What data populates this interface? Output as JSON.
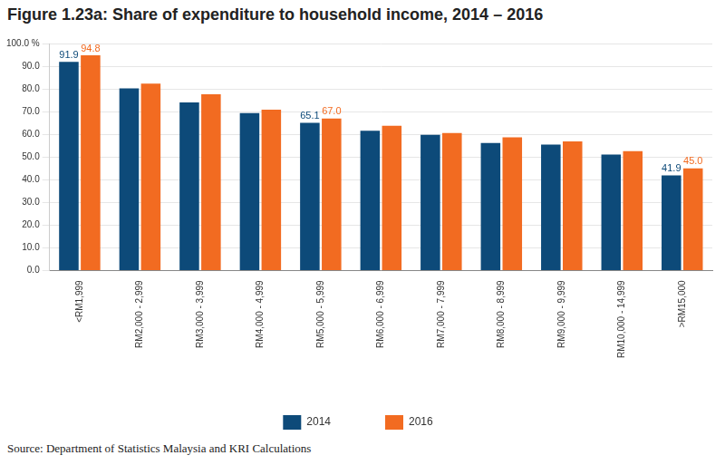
{
  "chart_data": {
    "type": "bar",
    "title": "Figure 1.23a: Share of expenditure to household income, 2014 – 2016",
    "source": "Source: Department of Statistics Malaysia and KRI Calculations",
    "categories": [
      "<RM1,999",
      "RM2,000 - 2,999",
      "RM3,000 - 3,999",
      "RM4,000 - 4,999",
      "RM5,000 - 5,999",
      "RM6,000 - 6,999",
      "RM7,000 - 7,999",
      "RM8,000 - 8,999",
      "RM9,000 - 9,999",
      "RM10,000 - 14,999",
      ">RM15,000"
    ],
    "series": [
      {
        "name": "2014",
        "color": "#0d4a79",
        "values": [
          91.9,
          80.2,
          74.0,
          69.3,
          65.1,
          61.6,
          59.8,
          56.2,
          55.5,
          51.1,
          41.9
        ],
        "value_labels": [
          "91.9",
          null,
          null,
          null,
          "65.1",
          null,
          null,
          null,
          null,
          null,
          "41.9"
        ]
      },
      {
        "name": "2016",
        "color": "#f26b21",
        "values": [
          94.8,
          82.3,
          77.6,
          70.8,
          67.0,
          63.8,
          60.6,
          58.7,
          56.9,
          52.6,
          45.0
        ],
        "value_labels": [
          "94.8",
          null,
          null,
          null,
          "67.0",
          null,
          null,
          null,
          null,
          null,
          "45.0"
        ]
      }
    ],
    "ylim": [
      0,
      100
    ],
    "yticks": [
      {
        "value": 0,
        "label": "0.0"
      },
      {
        "value": 10,
        "label": "10.0"
      },
      {
        "value": 20,
        "label": "20.0"
      },
      {
        "value": 30,
        "label": "30.0"
      },
      {
        "value": 40,
        "label": "40.0"
      },
      {
        "value": 50,
        "label": "50.0"
      },
      {
        "value": 60,
        "label": "60.0"
      },
      {
        "value": 70,
        "label": "70.0"
      },
      {
        "value": 80,
        "label": "80.0"
      },
      {
        "value": 90,
        "label": "90.0"
      },
      {
        "value": 100,
        "label": "100.0 %"
      }
    ],
    "grid": true,
    "legend": "bottom",
    "data_labels": true
  }
}
